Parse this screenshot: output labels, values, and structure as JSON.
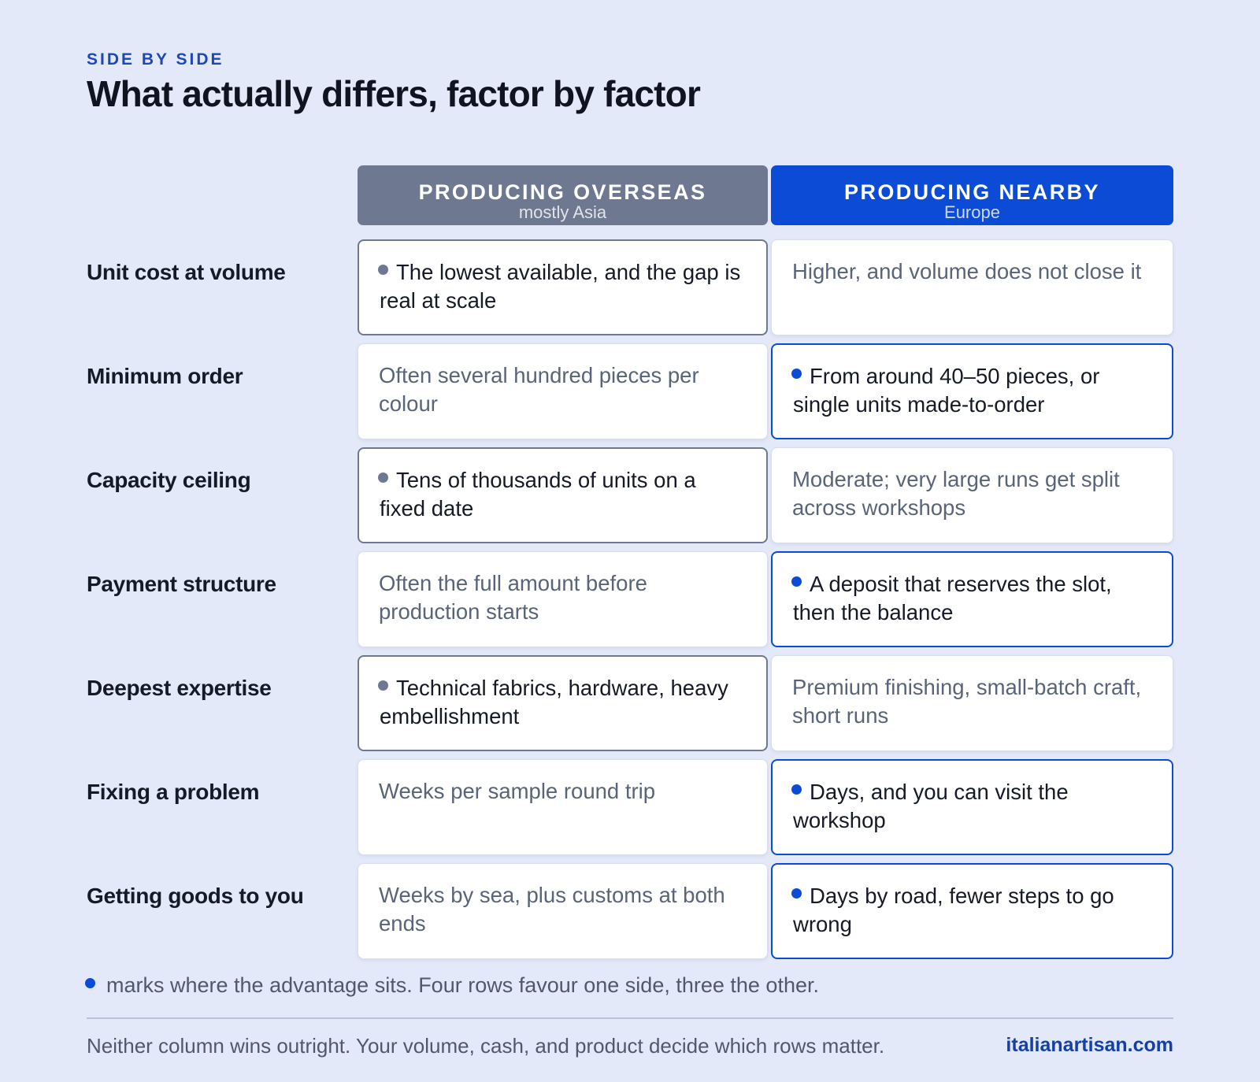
{
  "header": {
    "eyebrow": "SIDE BY SIDE",
    "title": "What actually differs, factor by factor"
  },
  "columns": {
    "overseas": {
      "title": "PRODUCING OVERSEAS",
      "subtitle": "mostly Asia",
      "color": "#6e7890"
    },
    "nearby": {
      "title": "PRODUCING NEARBY",
      "subtitle": "Europe",
      "color": "#0b4bd6"
    }
  },
  "rows": [
    {
      "label": "Unit cost at volume",
      "overseas": "The lowest available, and the gap is real at scale",
      "nearby": "Higher, and volume does not close it",
      "advantage": "overseas"
    },
    {
      "label": "Minimum order",
      "overseas": "Often several hundred pieces per colour",
      "nearby": "From around 40–50 pieces, or single units made-to-order",
      "advantage": "nearby"
    },
    {
      "label": "Capacity ceiling",
      "overseas": "Tens of thousands of units on a fixed date",
      "nearby": "Moderate; very large runs get split across workshops",
      "advantage": "overseas"
    },
    {
      "label": "Payment structure",
      "overseas": "Often the full amount before production starts",
      "nearby": "A deposit that reserves the slot, then the balance",
      "advantage": "nearby"
    },
    {
      "label": "Deepest expertise",
      "overseas": "Technical fabrics, hardware, heavy embellishment",
      "nearby": "Premium finishing, small-batch craft, short runs",
      "advantage": "overseas"
    },
    {
      "label": "Fixing a problem",
      "overseas": "Weeks per sample round trip",
      "nearby": "Days, and you can visit the workshop",
      "advantage": "nearby"
    },
    {
      "label": "Getting goods to you",
      "overseas": "Weeks by sea, plus customs at both ends",
      "nearby": "Days by road, fewer steps to go wrong",
      "advantage": "nearby"
    }
  ],
  "legend": {
    "text": "marks where the advantage sits. Four rows favour one side, three the other."
  },
  "footer": {
    "note": "Neither column wins outright. Your volume, cash, and product decide which rows matter.",
    "site": "italianartisan.com"
  }
}
